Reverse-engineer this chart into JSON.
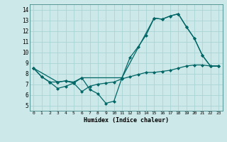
{
  "title": "",
  "xlabel": "Humidex (Indice chaleur)",
  "ylabel": "",
  "bg_color": "#cce8e8",
  "line_color": "#006666",
  "grid_color": "#aad4d4",
  "xlim": [
    -0.5,
    23.5
  ],
  "ylim": [
    4.5,
    14.5
  ],
  "xticks": [
    0,
    1,
    2,
    3,
    4,
    5,
    6,
    7,
    8,
    9,
    10,
    11,
    12,
    13,
    14,
    15,
    16,
    17,
    18,
    19,
    20,
    21,
    22,
    23
  ],
  "yticks": [
    5,
    6,
    7,
    8,
    9,
    10,
    11,
    12,
    13,
    14
  ],
  "series1_x": [
    0,
    1,
    2,
    3,
    4,
    5,
    6,
    7,
    8,
    9,
    10,
    11,
    15,
    16,
    17,
    18,
    19,
    20,
    21,
    22,
    23
  ],
  "series1_y": [
    8.5,
    7.7,
    7.2,
    7.2,
    7.3,
    7.2,
    7.6,
    6.5,
    6.1,
    5.2,
    5.4,
    7.6,
    13.2,
    13.1,
    13.4,
    13.6,
    12.4,
    11.3,
    9.7,
    8.7,
    8.7
  ],
  "series2_x": [
    0,
    1,
    2,
    3,
    4,
    5,
    6,
    7,
    8,
    9,
    10,
    11,
    12,
    13,
    14,
    15,
    16,
    17,
    18,
    19,
    20,
    21,
    22,
    23
  ],
  "series2_y": [
    8.5,
    7.7,
    7.2,
    6.6,
    6.8,
    7.1,
    6.3,
    6.8,
    7.0,
    7.1,
    7.2,
    7.5,
    7.7,
    7.9,
    8.1,
    8.1,
    8.2,
    8.3,
    8.5,
    8.7,
    8.8,
    8.8,
    8.7,
    8.7
  ],
  "series3_x": [
    0,
    3,
    4,
    5,
    6,
    11,
    12,
    13,
    14,
    15,
    16,
    17,
    18,
    19,
    20,
    21,
    22,
    23
  ],
  "series3_y": [
    8.5,
    7.2,
    7.3,
    7.1,
    7.6,
    7.6,
    9.5,
    10.5,
    11.6,
    13.2,
    13.1,
    13.4,
    13.6,
    12.4,
    11.3,
    9.7,
    8.7,
    8.7
  ]
}
